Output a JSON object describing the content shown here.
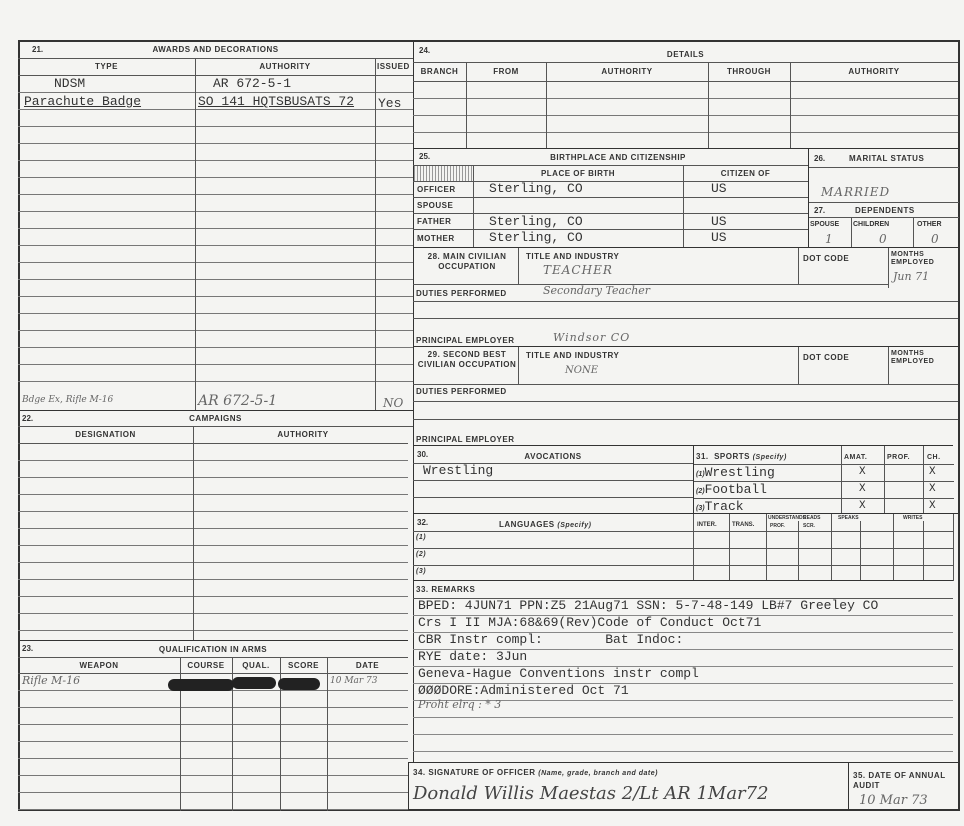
{
  "awards": {
    "number": "21.",
    "title": "AWARDS AND DECORATIONS",
    "col_type": "TYPE",
    "col_authority": "AUTHORITY",
    "col_issued": "ISSUED",
    "rows": [
      {
        "type": "NDSM",
        "authority": "AR 672-5-1",
        "issued": ""
      },
      {
        "type": "Parachute Badge",
        "authority": "SO 141 HQTSBUSATS 72",
        "issued": "Yes"
      }
    ],
    "handwritten_row": {
      "type": "Bdge Ex, Rifle M-16",
      "authority": "AR 672-5-1",
      "issued": "NO"
    }
  },
  "campaigns": {
    "number": "22.",
    "title": "CAMPAIGNS",
    "col_designation": "DESIGNATION",
    "col_authority": "AUTHORITY"
  },
  "qualification": {
    "number": "23.",
    "title": "QUALIFICATION IN ARMS",
    "col_weapon": "WEAPON",
    "col_course": "COURSE",
    "col_qual": "QUAL.",
    "col_score": "SCORE",
    "col_date": "DATE",
    "row": {
      "weapon": "Rifle M-16",
      "date": "10 Mar 73"
    }
  },
  "details": {
    "number": "24.",
    "title": "DETAILS",
    "col_branch": "BRANCH",
    "col_from": "FROM",
    "col_authority": "AUTHORITY",
    "col_through": "THROUGH",
    "col_authority2": "AUTHORITY"
  },
  "birthplace": {
    "number": "25.",
    "title": "BIRTHPLACE AND CITIZENSHIP",
    "col_place": "PLACE OF BIRTH",
    "col_citizen": "CITIZEN OF",
    "rows": [
      {
        "label": "OFFICER",
        "place": "Sterling, CO",
        "citizen": "US"
      },
      {
        "label": "SPOUSE",
        "place": "",
        "citizen": ""
      },
      {
        "label": "FATHER",
        "place": "Sterling, CO",
        "citizen": "US"
      },
      {
        "label": "MOTHER",
        "place": "Sterling, CO",
        "citizen": "US"
      }
    ]
  },
  "marital": {
    "number": "26.",
    "title": "MARITAL STATUS",
    "value": "MARRIED"
  },
  "dependents": {
    "number": "27.",
    "title": "DEPENDENTS",
    "col_spouse": "SPOUSE",
    "col_children": "CHILDREN",
    "col_other": "OTHER",
    "spouse": "1",
    "children": "0",
    "other": "0"
  },
  "main_occupation": {
    "number": "28.",
    "label": "MAIN CIVILIAN OCCUPATION",
    "title_label": "TITLE AND INDUSTRY",
    "title_value": "TEACHER",
    "dot_label": "DOT CODE",
    "months_label": "MONTHS EMPLOYED",
    "months_value": "Jun 71",
    "duties_label": "DUTIES PERFORMED",
    "duties_value": "Secondary Teacher",
    "employer_label": "PRINCIPAL EMPLOYER",
    "employer_value": "Windsor CO"
  },
  "second_occupation": {
    "number": "29.",
    "label": "SECOND BEST CIVILIAN OCCUPATION",
    "title_label": "TITLE AND INDUSTRY",
    "title_value": "NONE",
    "dot_label": "DOT CODE",
    "months_label": "MONTHS EMPLOYED",
    "duties_label": "DUTIES PERFORMED",
    "employer_label": "PRINCIPAL EMPLOYER"
  },
  "avocations": {
    "number": "30.",
    "title": "AVOCATIONS",
    "value": "Wrestling"
  },
  "sports": {
    "number": "31.",
    "title": "SPORTS",
    "specify": "(Specify)",
    "col_amat": "AMAT.",
    "col_prof": "PROF.",
    "col_ch": "CH.",
    "rows": [
      {
        "idx": "(1)",
        "name": "Wrestling",
        "amat": "X",
        "prof": "",
        "ch": "X"
      },
      {
        "idx": "(2)",
        "name": "Football",
        "amat": "X",
        "prof": "",
        "ch": "X"
      },
      {
        "idx": "(3)",
        "name": "Track",
        "amat": "X",
        "prof": "",
        "ch": "X"
      }
    ]
  },
  "languages": {
    "number": "32.",
    "title": "LANGUAGES",
    "specify": "(Specify)",
    "col_inter": "INTER.",
    "col_trans": "TRANS.",
    "col_understands": "UNDERSTANDS",
    "col_reads": "READS",
    "col_speaks": "SPEAKS",
    "col_writes": "WRITES",
    "sub_prof": "PROF.",
    "sub_scr": "SCR.",
    "rows": [
      "(1)",
      "(2)",
      "(3)"
    ]
  },
  "remarks": {
    "number": "33.",
    "title": "REMARKS",
    "lines": [
      "BPED: 4JUN71 PPN:Z5 21Aug71 SSN: 5-7-48-149 LB#7 Greeley CO",
      "Crs I II MJA:68&69(Rev)Code of Conduct Oct71",
      "CBR Instr compl:        Bat Indoc:",
      "RYE date: 3Jun",
      "Geneva-Hague Conventions instr compl",
      "ØØØDORE:Administered Oct 71"
    ],
    "handwritten": "Proht elrq : * 3"
  },
  "signature": {
    "number": "34.",
    "title": "SIGNATURE OF OFFICER",
    "hint": "(Name, grade, branch and date)",
    "value": "Donald Willis Maestas 2/Lt AR 1Mar72"
  },
  "audit": {
    "number": "35.",
    "title": "DATE OF ANNUAL AUDIT",
    "value": "10 Mar 73"
  }
}
